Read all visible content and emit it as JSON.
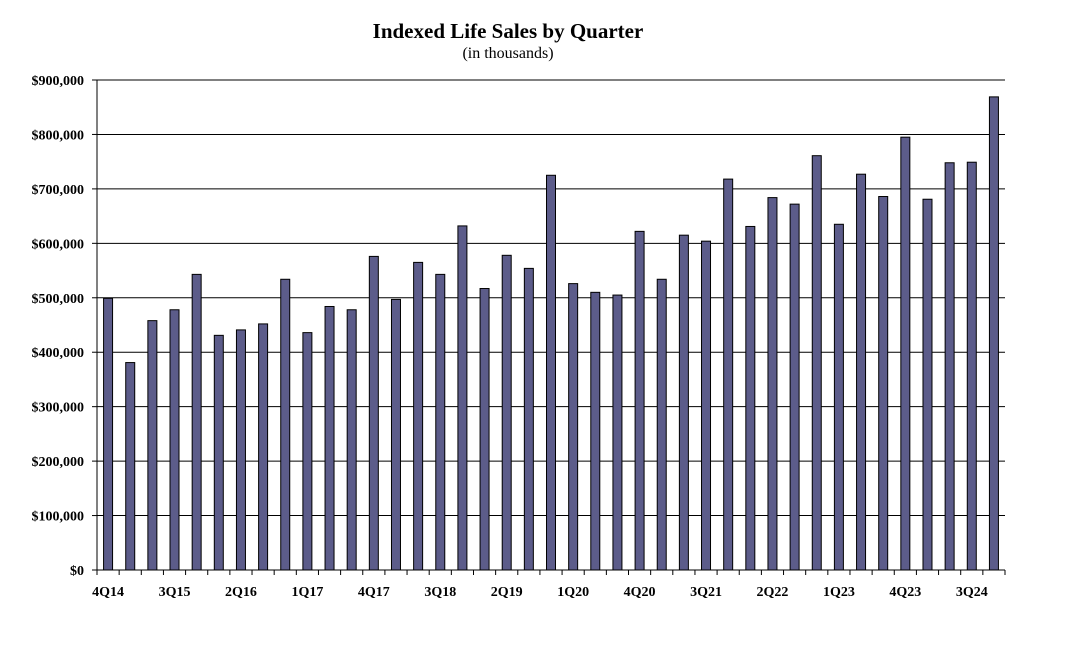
{
  "chart_data": {
    "type": "bar",
    "title": "Indexed Life Sales by Quarter",
    "subtitle": "(in thousands)",
    "xlabel": "",
    "ylabel": "",
    "ylim": [
      0,
      900000
    ],
    "y_ticks": [
      "$0",
      "$100,000",
      "$200,000",
      "$300,000",
      "$400,000",
      "$500,000",
      "$600,000",
      "$700,000",
      "$800,000",
      "$900,000"
    ],
    "grid": true,
    "bar_color": "#5c5c8a",
    "categories": [
      "4Q14",
      "1Q15",
      "2Q15",
      "3Q15",
      "4Q15",
      "1Q16",
      "2Q16",
      "3Q16",
      "4Q16",
      "1Q17",
      "2Q17",
      "3Q17",
      "4Q17",
      "1Q18",
      "2Q18",
      "3Q18",
      "4Q18",
      "1Q19",
      "2Q19",
      "3Q19",
      "4Q19",
      "1Q20",
      "2Q20",
      "3Q20",
      "4Q20",
      "1Q21",
      "2Q21",
      "3Q21",
      "4Q21",
      "1Q22",
      "2Q22",
      "3Q22",
      "4Q22",
      "1Q23",
      "2Q23",
      "3Q23",
      "4Q23",
      "1Q24",
      "2Q24",
      "3Q24",
      "4Q24"
    ],
    "shown_x_labels": [
      "4Q14",
      "3Q15",
      "2Q16",
      "1Q17",
      "4Q17",
      "3Q18",
      "2Q19",
      "1Q20",
      "4Q20",
      "3Q21",
      "2Q22",
      "1Q23",
      "4Q23",
      "3Q24"
    ],
    "values": [
      499000,
      381000,
      458000,
      478000,
      543000,
      431000,
      441000,
      452000,
      534000,
      436000,
      484000,
      478000,
      576000,
      497000,
      565000,
      543000,
      632000,
      517000,
      578000,
      554000,
      725000,
      526000,
      510000,
      505000,
      622000,
      534000,
      615000,
      604000,
      718000,
      631000,
      684000,
      672000,
      761000,
      635000,
      727000,
      686000,
      795000,
      681000,
      748000,
      749000,
      869000
    ]
  }
}
